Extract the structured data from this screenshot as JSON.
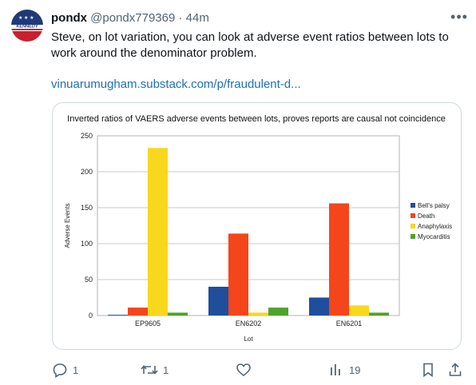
{
  "tweet": {
    "avatar_text": "KENNEDY",
    "display_name": "pondx",
    "handle": "@pondx779369",
    "separator": "·",
    "time": "44m",
    "text": "Steve, on lot variation, you can look at adverse event ratios between lots to work around the denominator problem.",
    "link": "vinuarumugham.substack.com/p/fraudulent-d...",
    "more_icon": "more-icon"
  },
  "chart_data": {
    "type": "bar",
    "title": "Inverted ratios of VAERS adverse events between lots, proves reports are causal not coincidence",
    "xlabel": "Lot",
    "ylabel": "Adverse Events",
    "ylim": [
      0,
      250
    ],
    "yticks": [
      0,
      50,
      100,
      150,
      200,
      250
    ],
    "grid": true,
    "legend_position": "right",
    "categories": [
      "EP9605",
      "EN6202",
      "EN6201"
    ],
    "series": [
      {
        "name": "Bell's palsy",
        "color": "#1f4e9c",
        "values": [
          1,
          40,
          25
        ]
      },
      {
        "name": "Death",
        "color": "#f5451a",
        "values": [
          11,
          114,
          156
        ]
      },
      {
        "name": "Anaphylaxis",
        "color": "#f7d81d",
        "values": [
          233,
          4,
          14
        ]
      },
      {
        "name": "Myocarditis",
        "color": "#4fa32b",
        "values": [
          4,
          11,
          4
        ]
      }
    ]
  },
  "actions": {
    "reply": {
      "icon": "reply-icon",
      "count": "1"
    },
    "retweet": {
      "icon": "retweet-icon",
      "count": "1"
    },
    "like": {
      "icon": "heart-icon",
      "count": ""
    },
    "views": {
      "icon": "views-icon",
      "count": "19"
    },
    "bookmark": {
      "icon": "bookmark-icon"
    },
    "share": {
      "icon": "share-icon"
    }
  }
}
